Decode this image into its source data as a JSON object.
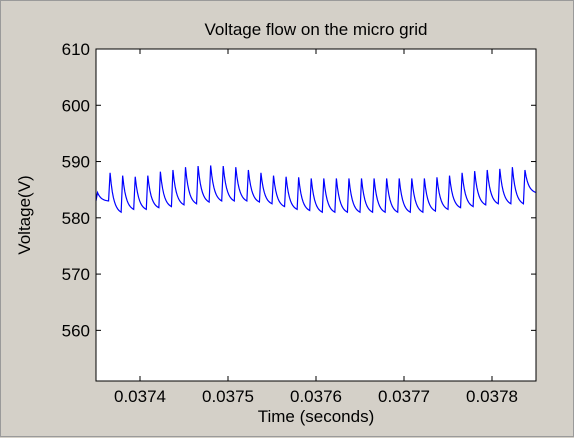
{
  "chart_data": {
    "type": "line",
    "title": "Voltage flow on the micro grid",
    "xlabel": "Time (seconds)",
    "ylabel": "Voltage(V)",
    "xlim": [
      0.03735,
      0.03785
    ],
    "ylim": [
      551,
      610
    ],
    "xticks": [
      0.0374,
      0.0375,
      0.0376,
      0.0377,
      0.0378
    ],
    "xtick_labels": [
      "0.0374",
      "0.0375",
      "0.0376",
      "0.0377",
      "0.0378"
    ],
    "yticks": [
      560,
      570,
      580,
      590,
      600,
      610
    ],
    "ytick_labels": [
      "560",
      "570",
      "580",
      "590",
      "600",
      "610"
    ],
    "grid": false,
    "legend": false,
    "series": [
      {
        "color": "#0000ff",
        "ripple": {
          "t_start": 0.03735,
          "t_end": 0.03785,
          "cycles": 35,
          "peaks": [
            584.5,
            588.0,
            587.5,
            587.3,
            587.5,
            588.2,
            588.5,
            589.0,
            589.2,
            589.3,
            589.2,
            589.0,
            588.5,
            588.0,
            587.5,
            587.3,
            587.2,
            587.0,
            587.0,
            587.0,
            587.0,
            587.0,
            587.0,
            587.0,
            587.0,
            587.0,
            587.0,
            587.2,
            587.5,
            588.0,
            588.3,
            588.5,
            588.7,
            589.0,
            588.5
          ],
          "troughs": [
            583.0,
            581.0,
            581.5,
            581.5,
            581.8,
            582.0,
            582.3,
            582.5,
            582.8,
            583.0,
            583.0,
            583.0,
            582.8,
            582.5,
            582.0,
            581.5,
            581.3,
            581.0,
            581.0,
            581.0,
            581.0,
            581.0,
            581.0,
            581.0,
            581.0,
            581.0,
            581.2,
            581.5,
            581.8,
            582.0,
            582.3,
            582.5,
            582.5,
            582.5,
            584.5
          ]
        }
      }
    ]
  }
}
